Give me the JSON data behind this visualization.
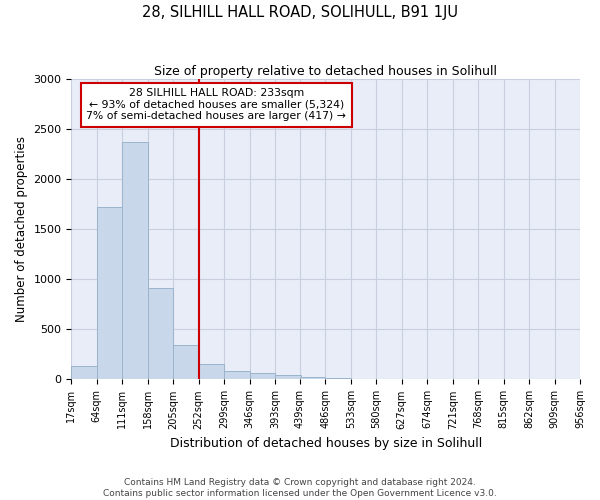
{
  "title": "28, SILHILL HALL ROAD, SOLIHULL, B91 1JU",
  "subtitle": "Size of property relative to detached houses in Solihull",
  "xlabel": "Distribution of detached houses by size in Solihull",
  "ylabel": "Number of detached properties",
  "footer1": "Contains HM Land Registry data © Crown copyright and database right 2024.",
  "footer2": "Contains public sector information licensed under the Open Government Licence v3.0.",
  "bar_color": "#c8d8ea",
  "bar_edge_color": "#9ab4cc",
  "grid_color": "#c8d0e0",
  "bg_color": "#e8edf8",
  "annotation_box_color": "#cc0000",
  "vline_color": "#cc0000",
  "bin_labels": [
    "17sqm",
    "64sqm",
    "111sqm",
    "158sqm",
    "205sqm",
    "252sqm",
    "299sqm",
    "346sqm",
    "393sqm",
    "439sqm",
    "486sqm",
    "533sqm",
    "580sqm",
    "627sqm",
    "674sqm",
    "721sqm",
    "768sqm",
    "815sqm",
    "862sqm",
    "909sqm",
    "956sqm"
  ],
  "bin_edges": [
    17,
    64,
    111,
    158,
    205,
    252,
    299,
    346,
    393,
    439,
    486,
    533,
    580,
    627,
    674,
    721,
    768,
    815,
    862,
    909,
    956
  ],
  "bar_values": [
    130,
    1720,
    2370,
    910,
    340,
    155,
    85,
    60,
    45,
    25,
    10,
    5,
    5,
    0,
    0,
    0,
    0,
    0,
    0,
    0
  ],
  "vline_x": 252,
  "annotation_title": "28 SILHILL HALL ROAD: 233sqm",
  "annotation_line1": "← 93% of detached houses are smaller (5,324)",
  "annotation_line2": "7% of semi-detached houses are larger (417) →",
  "ylim": [
    0,
    3000
  ],
  "yticks": [
    0,
    500,
    1000,
    1500,
    2000,
    2500,
    3000
  ]
}
